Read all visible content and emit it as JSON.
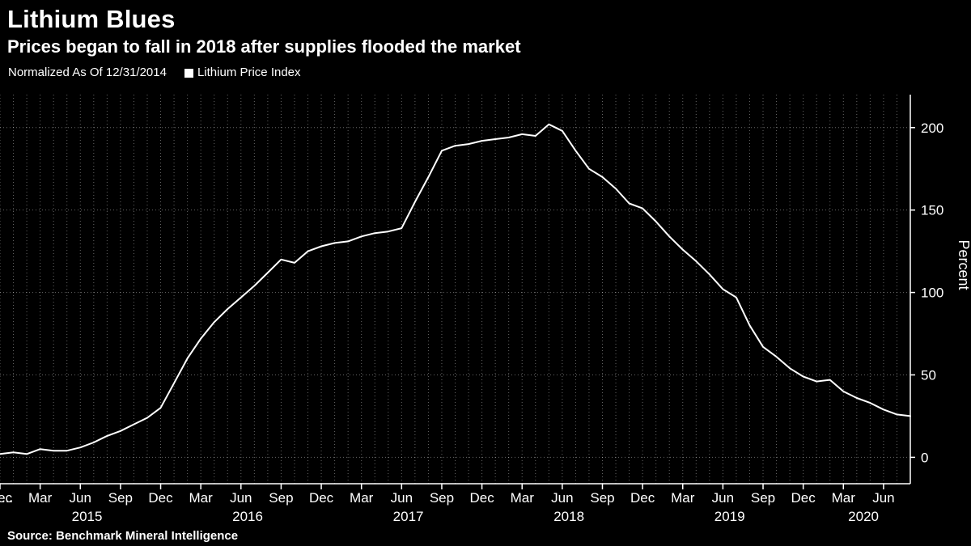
{
  "header": {
    "title": "Lithium Blues",
    "subtitle": "Prices began to fall in 2018 after supplies flooded the market"
  },
  "legend": {
    "note": "Normalized As Of 12/31/2014",
    "series_label": "Lithium Price Index",
    "marker_color": "#ffffff"
  },
  "source": "Source: Benchmark Mineral Intelligence",
  "chart_data": {
    "type": "line",
    "title": "Lithium Blues",
    "subtitle": "Prices began to fall in 2018 after supplies flooded the market",
    "xlabel": "",
    "ylabel": "Percent",
    "legend_position": "top-left",
    "grid": true,
    "line_color": "#ffffff",
    "background": "#000000",
    "ylim": [
      -16,
      220
    ],
    "yticks": [
      0,
      50,
      100,
      150,
      200
    ],
    "xtick_month_labels": [
      "Mar",
      "Jun",
      "Sep",
      "Dec"
    ],
    "leading_label": "...",
    "years": [
      "2015",
      "2016",
      "2017",
      "2018",
      "2019",
      "2020"
    ],
    "x": [
      "2014-12",
      "2015-01",
      "2015-02",
      "2015-03",
      "2015-04",
      "2015-05",
      "2015-06",
      "2015-07",
      "2015-08",
      "2015-09",
      "2015-10",
      "2015-11",
      "2015-12",
      "2016-01",
      "2016-02",
      "2016-03",
      "2016-04",
      "2016-05",
      "2016-06",
      "2016-07",
      "2016-08",
      "2016-09",
      "2016-10",
      "2016-11",
      "2016-12",
      "2017-01",
      "2017-02",
      "2017-03",
      "2017-04",
      "2017-05",
      "2017-06",
      "2017-07",
      "2017-08",
      "2017-09",
      "2017-10",
      "2017-11",
      "2017-12",
      "2018-01",
      "2018-02",
      "2018-03",
      "2018-04",
      "2018-05",
      "2018-06",
      "2018-07",
      "2018-08",
      "2018-09",
      "2018-10",
      "2018-11",
      "2018-12",
      "2019-01",
      "2019-02",
      "2019-03",
      "2019-04",
      "2019-05",
      "2019-06",
      "2019-07",
      "2019-08",
      "2019-09",
      "2019-10",
      "2019-11",
      "2019-12",
      "2020-01",
      "2020-02",
      "2020-03",
      "2020-04",
      "2020-05",
      "2020-06",
      "2020-07",
      "2020-08"
    ],
    "values": [
      2,
      3,
      2,
      5,
      4,
      4,
      6,
      9,
      13,
      16,
      20,
      24,
      30,
      45,
      60,
      72,
      82,
      90,
      97,
      104,
      112,
      120,
      118,
      125,
      128,
      130,
      131,
      134,
      136,
      137,
      139,
      155,
      170,
      186,
      189,
      190,
      192,
      193,
      194,
      196,
      195,
      202,
      198,
      186,
      175,
      170,
      163,
      154,
      151,
      143,
      134,
      126,
      119,
      111,
      102,
      97,
      80,
      67,
      61,
      54,
      49,
      46,
      47,
      40,
      36,
      33,
      29,
      26,
      25
    ],
    "series": [
      {
        "name": "Lithium Price Index",
        "values": [
          2,
          3,
          2,
          5,
          4,
          4,
          6,
          9,
          13,
          16,
          20,
          24,
          30,
          45,
          60,
          72,
          82,
          90,
          97,
          104,
          112,
          120,
          118,
          125,
          128,
          130,
          131,
          134,
          136,
          137,
          139,
          155,
          170,
          186,
          189,
          190,
          192,
          193,
          194,
          196,
          195,
          202,
          198,
          186,
          175,
          170,
          163,
          154,
          151,
          143,
          134,
          126,
          119,
          111,
          102,
          97,
          80,
          67,
          61,
          54,
          49,
          46,
          47,
          40,
          36,
          33,
          29,
          26,
          25
        ]
      }
    ]
  }
}
